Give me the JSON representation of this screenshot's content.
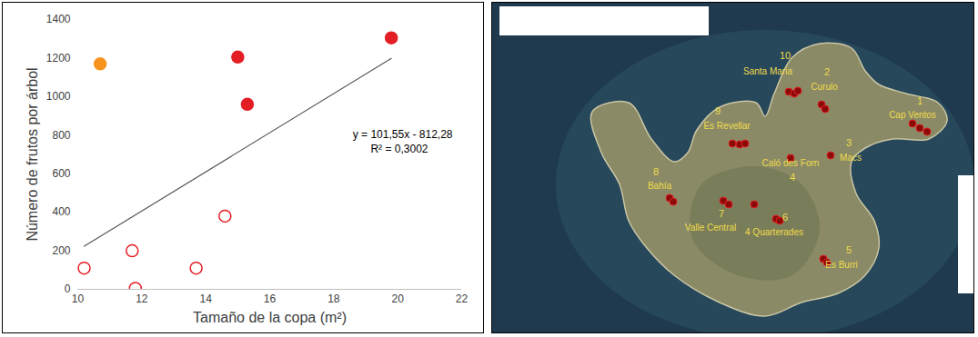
{
  "chart_data": {
    "type": "scatter",
    "x_label": "Tamaño de la copa (m²)",
    "y_label": "Número de frutos por árbol",
    "xlim": [
      10,
      22
    ],
    "xticks": [
      10,
      12,
      14,
      16,
      18,
      20,
      22
    ],
    "ylim": [
      0,
      1400
    ],
    "yticks": [
      0,
      200,
      400,
      600,
      800,
      1000,
      1200,
      1400
    ],
    "grid": false,
    "series": [
      {
        "color": "#f7941d",
        "marker": "filled",
        "x": [
          10.7
        ],
        "values": [
          1170
        ]
      },
      {
        "color": "#e31e24",
        "marker": "filled",
        "x": [
          15.0,
          15.3,
          19.8
        ],
        "values": [
          1205,
          960,
          1305
        ]
      },
      {
        "color": "#e31e24",
        "marker": "open",
        "x": [
          10.2,
          11.7,
          11.8,
          13.7,
          14.6
        ],
        "values": [
          110,
          200,
          5,
          110,
          380
        ]
      }
    ],
    "trendline": {
      "color": "#595959",
      "x": [
        10.2,
        19.8
      ],
      "values": [
        223.5,
        1198.4
      ],
      "equation": "y = 101,55x - 812,28",
      "r2": "R² = 0,3002"
    }
  },
  "map": {
    "sites": [
      {
        "number": 1,
        "name": "Cap Ventos"
      },
      {
        "number": 2,
        "name": "Curulo"
      },
      {
        "number": 3,
        "name": "Macs"
      },
      {
        "number": 4,
        "name": "Caló des Forn"
      },
      {
        "number": 5,
        "name": "Es Burri"
      },
      {
        "number": 6,
        "name": "4 Quarterades"
      },
      {
        "number": 7,
        "name": "Valle Central"
      },
      {
        "number": 8,
        "name": "Bahía"
      },
      {
        "number": 9,
        "name": "Es Revellar"
      },
      {
        "number": 10,
        "name": "Santa Maria"
      }
    ]
  }
}
